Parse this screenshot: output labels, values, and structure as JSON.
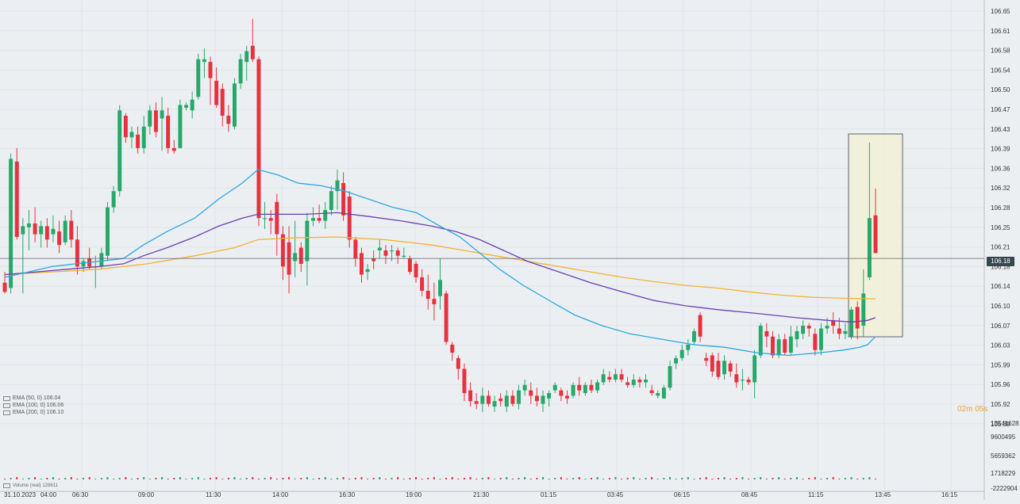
{
  "colors": {
    "background": "#eceff2",
    "grid": "#dfe3e8",
    "up_candle": "#26a86a",
    "down_candle": "#e8303f",
    "ema50": "#29a8e0",
    "ema100": "#6a3fb3",
    "ema200": "#f5b232",
    "price_line": "#5a6570",
    "highlight_fill": "#f2f0d8",
    "highlight_border": "#5a6570"
  },
  "legend": {
    "ema50": "EMA (50, 0) 106.04",
    "ema100": "EMA (100, 0) 106.06",
    "ema200": "EMA (200, 0) 106.10",
    "volume": "Volume (real) 128611"
  },
  "countdown": "02m 05s",
  "current_price": "106.18",
  "chart_data": {
    "type": "candlestick",
    "price_axis_labels": [
      "106.65",
      "106.61",
      "106.58",
      "106.54",
      "106.50",
      "106.47",
      "106.43",
      "106.39",
      "106.36",
      "106.32",
      "106.28",
      "106.25",
      "106.21",
      "106.18",
      "106.14",
      "106.10",
      "106.07",
      "106.03",
      "105.99",
      "105.96",
      "105.92",
      "105.89"
    ],
    "volume_axis_labels": [
      "13541628",
      "9600495",
      "5659362",
      "1718229",
      "-2222904"
    ],
    "time_axis_labels": [
      "31.10.2023",
      "04:00",
      "06:30",
      "09:00",
      "11:30",
      "14:00",
      "16:30",
      "19:00",
      "21:30",
      "01:15",
      "03:45",
      "06:15",
      "08:45",
      "11:15",
      "13:45",
      "16:15"
    ],
    "ylim": [
      105.88,
      106.66
    ],
    "candles": [
      [
        106.135,
        106.155,
        106.115,
        106.118
      ],
      [
        106.125,
        106.375,
        106.115,
        106.365
      ],
      [
        106.36,
        106.385,
        106.215,
        106.22
      ],
      [
        106.225,
        106.255,
        106.115,
        106.24
      ],
      [
        106.238,
        106.27,
        106.195,
        106.245
      ],
      [
        106.245,
        106.275,
        106.21,
        106.225
      ],
      [
        106.225,
        106.25,
        106.2,
        106.24
      ],
      [
        106.24,
        106.255,
        106.2,
        106.215
      ],
      [
        106.225,
        106.26,
        106.21,
        106.235
      ],
      [
        106.23,
        106.25,
        106.19,
        106.205
      ],
      [
        106.21,
        106.26,
        106.205,
        106.25
      ],
      [
        106.25,
        106.27,
        106.2,
        106.215
      ],
      [
        106.215,
        106.24,
        106.15,
        106.165
      ],
      [
        106.165,
        106.18,
        106.155,
        106.175
      ],
      [
        106.18,
        106.2,
        106.16,
        106.165
      ],
      [
        106.165,
        106.185,
        106.125,
        106.165
      ],
      [
        106.165,
        106.2,
        106.16,
        106.19
      ],
      [
        106.185,
        106.285,
        106.175,
        106.275
      ],
      [
        106.275,
        106.315,
        106.265,
        106.305
      ],
      [
        106.305,
        106.465,
        106.295,
        106.455
      ],
      [
        106.445,
        106.45,
        106.395,
        106.405
      ],
      [
        106.405,
        106.425,
        106.385,
        106.415
      ],
      [
        106.41,
        106.425,
        106.375,
        106.385
      ],
      [
        106.385,
        106.445,
        106.375,
        106.425
      ],
      [
        106.425,
        106.465,
        106.41,
        106.455
      ],
      [
        106.455,
        106.47,
        106.405,
        106.415
      ],
      [
        106.44,
        106.48,
        106.38,
        106.455
      ],
      [
        106.445,
        106.46,
        106.375,
        106.385
      ],
      [
        106.385,
        106.4,
        106.375,
        106.38
      ],
      [
        106.385,
        106.475,
        106.385,
        106.465
      ],
      [
        106.46,
        106.47,
        106.455,
        106.465
      ],
      [
        106.455,
        106.49,
        106.44,
        106.475
      ],
      [
        106.48,
        106.56,
        106.475,
        106.55
      ],
      [
        106.545,
        106.57,
        106.515,
        106.55
      ],
      [
        106.545,
        106.555,
        106.465,
        106.515
      ],
      [
        106.51,
        106.535,
        106.46,
        106.465
      ],
      [
        106.495,
        106.505,
        106.425,
        106.445
      ],
      [
        106.445,
        106.465,
        106.415,
        106.43
      ],
      [
        106.425,
        106.515,
        106.42,
        106.505
      ],
      [
        106.505,
        106.56,
        106.495,
        106.55
      ],
      [
        106.545,
        106.575,
        106.51,
        106.565
      ],
      [
        106.575,
        106.625,
        106.545,
        106.55
      ],
      [
        106.55,
        106.555,
        106.24,
        106.255
      ],
      [
        106.255,
        106.285,
        106.235,
        106.255
      ],
      [
        106.255,
        106.27,
        106.225,
        106.25
      ],
      [
        106.285,
        106.3,
        106.185,
        106.225
      ],
      [
        106.225,
        106.24,
        106.14,
        106.165
      ],
      [
        106.21,
        106.24,
        106.115,
        106.15
      ],
      [
        106.175,
        106.25,
        106.145,
        106.19
      ],
      [
        106.2,
        106.21,
        106.155,
        106.17
      ],
      [
        106.175,
        106.265,
        106.13,
        106.25
      ],
      [
        106.25,
        106.275,
        106.24,
        106.255
      ],
      [
        106.255,
        106.28,
        106.245,
        106.25
      ],
      [
        106.25,
        106.285,
        106.235,
        106.27
      ],
      [
        106.27,
        106.315,
        106.26,
        106.305
      ],
      [
        106.305,
        106.345,
        106.27,
        106.325
      ],
      [
        106.32,
        106.34,
        106.25,
        106.26
      ],
      [
        106.295,
        106.305,
        106.2,
        106.215
      ],
      [
        106.215,
        106.22,
        106.165,
        106.18
      ],
      [
        106.19,
        106.2,
        106.135,
        106.15
      ],
      [
        106.155,
        106.17,
        106.14,
        106.16
      ],
      [
        106.18,
        106.195,
        106.16,
        106.175
      ],
      [
        106.195,
        106.215,
        106.18,
        106.2
      ],
      [
        106.195,
        106.205,
        106.17,
        106.185
      ],
      [
        106.195,
        106.205,
        106.175,
        106.195
      ],
      [
        106.195,
        106.2,
        106.17,
        106.185
      ],
      [
        106.185,
        106.2,
        106.18,
        106.185
      ],
      [
        106.18,
        106.185,
        106.15,
        106.155
      ],
      [
        106.17,
        106.175,
        106.135,
        106.145
      ],
      [
        106.145,
        106.16,
        106.11,
        106.12
      ],
      [
        106.12,
        106.15,
        106.085,
        106.105
      ],
      [
        106.105,
        106.135,
        106.065,
        106.095
      ],
      [
        106.11,
        106.18,
        106.085,
        106.14
      ],
      [
        106.115,
        106.12,
        106.02,
        106.025
      ],
      [
        106.02,
        106.025,
        105.99,
        106.005
      ],
      [
        105.995,
        106.0,
        105.955,
        105.975
      ],
      [
        105.975,
        105.985,
        105.915,
        105.93
      ],
      [
        105.935,
        105.95,
        105.905,
        105.915
      ],
      [
        105.915,
        105.93,
        105.9,
        105.91
      ],
      [
        105.91,
        105.94,
        105.895,
        105.925
      ],
      [
        105.925,
        105.935,
        105.905,
        105.91
      ],
      [
        105.905,
        105.925,
        105.895,
        105.915
      ],
      [
        105.92,
        105.93,
        105.905,
        105.915
      ],
      [
        105.905,
        105.935,
        105.895,
        105.925
      ],
      [
        105.925,
        105.935,
        105.905,
        105.91
      ],
      [
        105.91,
        105.945,
        105.9,
        105.935
      ],
      [
        105.935,
        105.955,
        105.925,
        105.945
      ],
      [
        105.935,
        105.95,
        105.91,
        105.925
      ],
      [
        105.925,
        105.94,
        105.905,
        105.915
      ],
      [
        105.91,
        105.935,
        105.895,
        105.925
      ],
      [
        105.92,
        105.935,
        105.905,
        105.93
      ],
      [
        105.935,
        105.95,
        105.93,
        105.945
      ],
      [
        105.935,
        105.94,
        105.915,
        105.925
      ],
      [
        105.925,
        105.935,
        105.91,
        105.92
      ],
      [
        105.925,
        105.95,
        105.92,
        105.945
      ],
      [
        105.945,
        105.96,
        105.925,
        105.935
      ],
      [
        105.93,
        105.95,
        105.925,
        105.945
      ],
      [
        105.945,
        105.955,
        105.93,
        105.935
      ],
      [
        105.935,
        105.955,
        105.93,
        105.95
      ],
      [
        105.95,
        105.975,
        105.945,
        105.965
      ],
      [
        105.96,
        105.97,
        105.95,
        105.955
      ],
      [
        105.955,
        105.975,
        105.95,
        105.965
      ],
      [
        105.965,
        105.975,
        105.95,
        105.955
      ],
      [
        105.95,
        105.96,
        105.94,
        105.945
      ],
      [
        105.945,
        105.965,
        105.94,
        105.955
      ],
      [
        105.955,
        105.96,
        105.94,
        105.95
      ],
      [
        105.95,
        105.965,
        105.94,
        105.955
      ],
      [
        105.935,
        105.945,
        105.925,
        105.93
      ],
      [
        105.925,
        105.935,
        105.92,
        105.93
      ],
      [
        105.92,
        105.945,
        105.92,
        105.94
      ],
      [
        105.94,
        105.99,
        105.935,
        105.98
      ],
      [
        105.985,
        106.0,
        105.975,
        105.995
      ],
      [
        105.995,
        106.02,
        105.99,
        106.01
      ],
      [
        106.01,
        106.03,
        106.0,
        106.02
      ],
      [
        106.025,
        106.05,
        106.02,
        106.045
      ],
      [
        106.075,
        106.08,
        106.025,
        106.035
      ],
      [
        105.995,
        106.005,
        105.98,
        105.99
      ],
      [
        106.0,
        106.005,
        105.96,
        105.97
      ],
      [
        105.99,
        106.005,
        105.955,
        105.96
      ],
      [
        105.965,
        106.0,
        105.955,
        105.99
      ],
      [
        105.985,
        105.99,
        105.96,
        105.97
      ],
      [
        105.965,
        105.985,
        105.94,
        105.95
      ],
      [
        105.955,
        105.975,
        105.935,
        105.955
      ],
      [
        105.955,
        105.96,
        105.945,
        105.95
      ],
      [
        105.95,
        106.01,
        105.92,
        106.0
      ],
      [
        106.0,
        106.06,
        105.995,
        106.055
      ],
      [
        106.045,
        106.06,
        106.015,
        106.035
      ],
      [
        106.035,
        106.045,
        105.995,
        106.0
      ],
      [
        106.0,
        106.04,
        105.995,
        106.03
      ],
      [
        106.03,
        106.04,
        106.0,
        106.005
      ],
      [
        106.005,
        106.055,
        106.0,
        106.035
      ],
      [
        106.03,
        106.055,
        106.015,
        106.045
      ],
      [
        106.04,
        106.065,
        106.03,
        106.055
      ],
      [
        106.055,
        106.06,
        106.035,
        106.05
      ],
      [
        106.04,
        106.05,
        106.0,
        106.01
      ],
      [
        106.01,
        106.06,
        106.0,
        106.05
      ],
      [
        106.05,
        106.07,
        106.04,
        106.055
      ],
      [
        106.065,
        106.08,
        106.04,
        106.055
      ],
      [
        106.05,
        106.07,
        106.03,
        106.04
      ],
      [
        106.04,
        106.06,
        106.03,
        106.045
      ],
      [
        106.035,
        106.09,
        106.03,
        106.085
      ],
      [
        106.09,
        106.1,
        106.03,
        106.05
      ],
      [
        106.055,
        106.16,
        106.035,
        106.115
      ],
      [
        106.145,
        106.395,
        106.14,
        106.255
      ],
      [
        106.26,
        106.31,
        106.19,
        106.19
      ]
    ],
    "ema50": [
      [
        0,
        106.145
      ],
      [
        30,
        106.155
      ],
      [
        60,
        106.165
      ],
      [
        90,
        106.17
      ],
      [
        120,
        106.175
      ],
      [
        150,
        106.18
      ],
      [
        175,
        106.205
      ],
      [
        205,
        106.23
      ],
      [
        240,
        106.255
      ],
      [
        270,
        106.29
      ],
      [
        300,
        106.32
      ],
      [
        320,
        106.345
      ],
      [
        345,
        106.335
      ],
      [
        370,
        106.32
      ],
      [
        400,
        106.315
      ],
      [
        430,
        106.305
      ],
      [
        460,
        106.29
      ],
      [
        490,
        106.275
      ],
      [
        520,
        106.265
      ],
      [
        550,
        106.24
      ],
      [
        575,
        106.22
      ],
      [
        600,
        106.19
      ],
      [
        625,
        106.16
      ],
      [
        655,
        106.13
      ],
      [
        690,
        106.1
      ],
      [
        720,
        106.075
      ],
      [
        755,
        106.055
      ],
      [
        790,
        106.04
      ],
      [
        830,
        106.03
      ],
      [
        870,
        106.02
      ],
      [
        910,
        106.015
      ],
      [
        950,
        106.005
      ],
      [
        990,
        106.0
      ],
      [
        1030,
        106.005
      ],
      [
        1060,
        106.01
      ],
      [
        1080,
        106.015
      ],
      [
        1090,
        106.02
      ],
      [
        1100,
        106.035
      ]
    ],
    "ema100": [
      [
        0,
        106.15
      ],
      [
        40,
        106.155
      ],
      [
        80,
        106.16
      ],
      [
        120,
        106.165
      ],
      [
        150,
        106.17
      ],
      [
        175,
        106.185
      ],
      [
        205,
        106.2
      ],
      [
        240,
        106.22
      ],
      [
        270,
        106.24
      ],
      [
        300,
        106.255
      ],
      [
        320,
        106.262
      ],
      [
        345,
        106.262
      ],
      [
        380,
        106.262
      ],
      [
        420,
        106.265
      ],
      [
        460,
        106.258
      ],
      [
        500,
        106.25
      ],
      [
        540,
        106.24
      ],
      [
        570,
        106.23
      ],
      [
        600,
        106.215
      ],
      [
        630,
        106.195
      ],
      [
        660,
        106.175
      ],
      [
        700,
        106.155
      ],
      [
        740,
        106.135
      ],
      [
        780,
        106.118
      ],
      [
        820,
        106.102
      ],
      [
        860,
        106.092
      ],
      [
        900,
        106.085
      ],
      [
        950,
        106.078
      ],
      [
        1000,
        106.07
      ],
      [
        1040,
        106.065
      ],
      [
        1070,
        106.062
      ],
      [
        1090,
        106.065
      ],
      [
        1100,
        106.07
      ]
    ],
    "ema200": [
      [
        0,
        106.15
      ],
      [
        60,
        106.155
      ],
      [
        120,
        106.16
      ],
      [
        180,
        106.17
      ],
      [
        240,
        106.185
      ],
      [
        290,
        106.2
      ],
      [
        320,
        106.215
      ],
      [
        360,
        106.218
      ],
      [
        420,
        106.22
      ],
      [
        480,
        106.215
      ],
      [
        540,
        106.205
      ],
      [
        580,
        106.195
      ],
      [
        620,
        106.185
      ],
      [
        660,
        106.175
      ],
      [
        700,
        106.165
      ],
      [
        740,
        106.155
      ],
      [
        780,
        106.145
      ],
      [
        820,
        106.137
      ],
      [
        860,
        106.13
      ],
      [
        900,
        106.125
      ],
      [
        940,
        106.118
      ],
      [
        980,
        106.112
      ],
      [
        1020,
        106.108
      ],
      [
        1060,
        106.106
      ],
      [
        1100,
        106.105
      ]
    ],
    "volume_pattern": "small red and green bars across the volume panel"
  }
}
